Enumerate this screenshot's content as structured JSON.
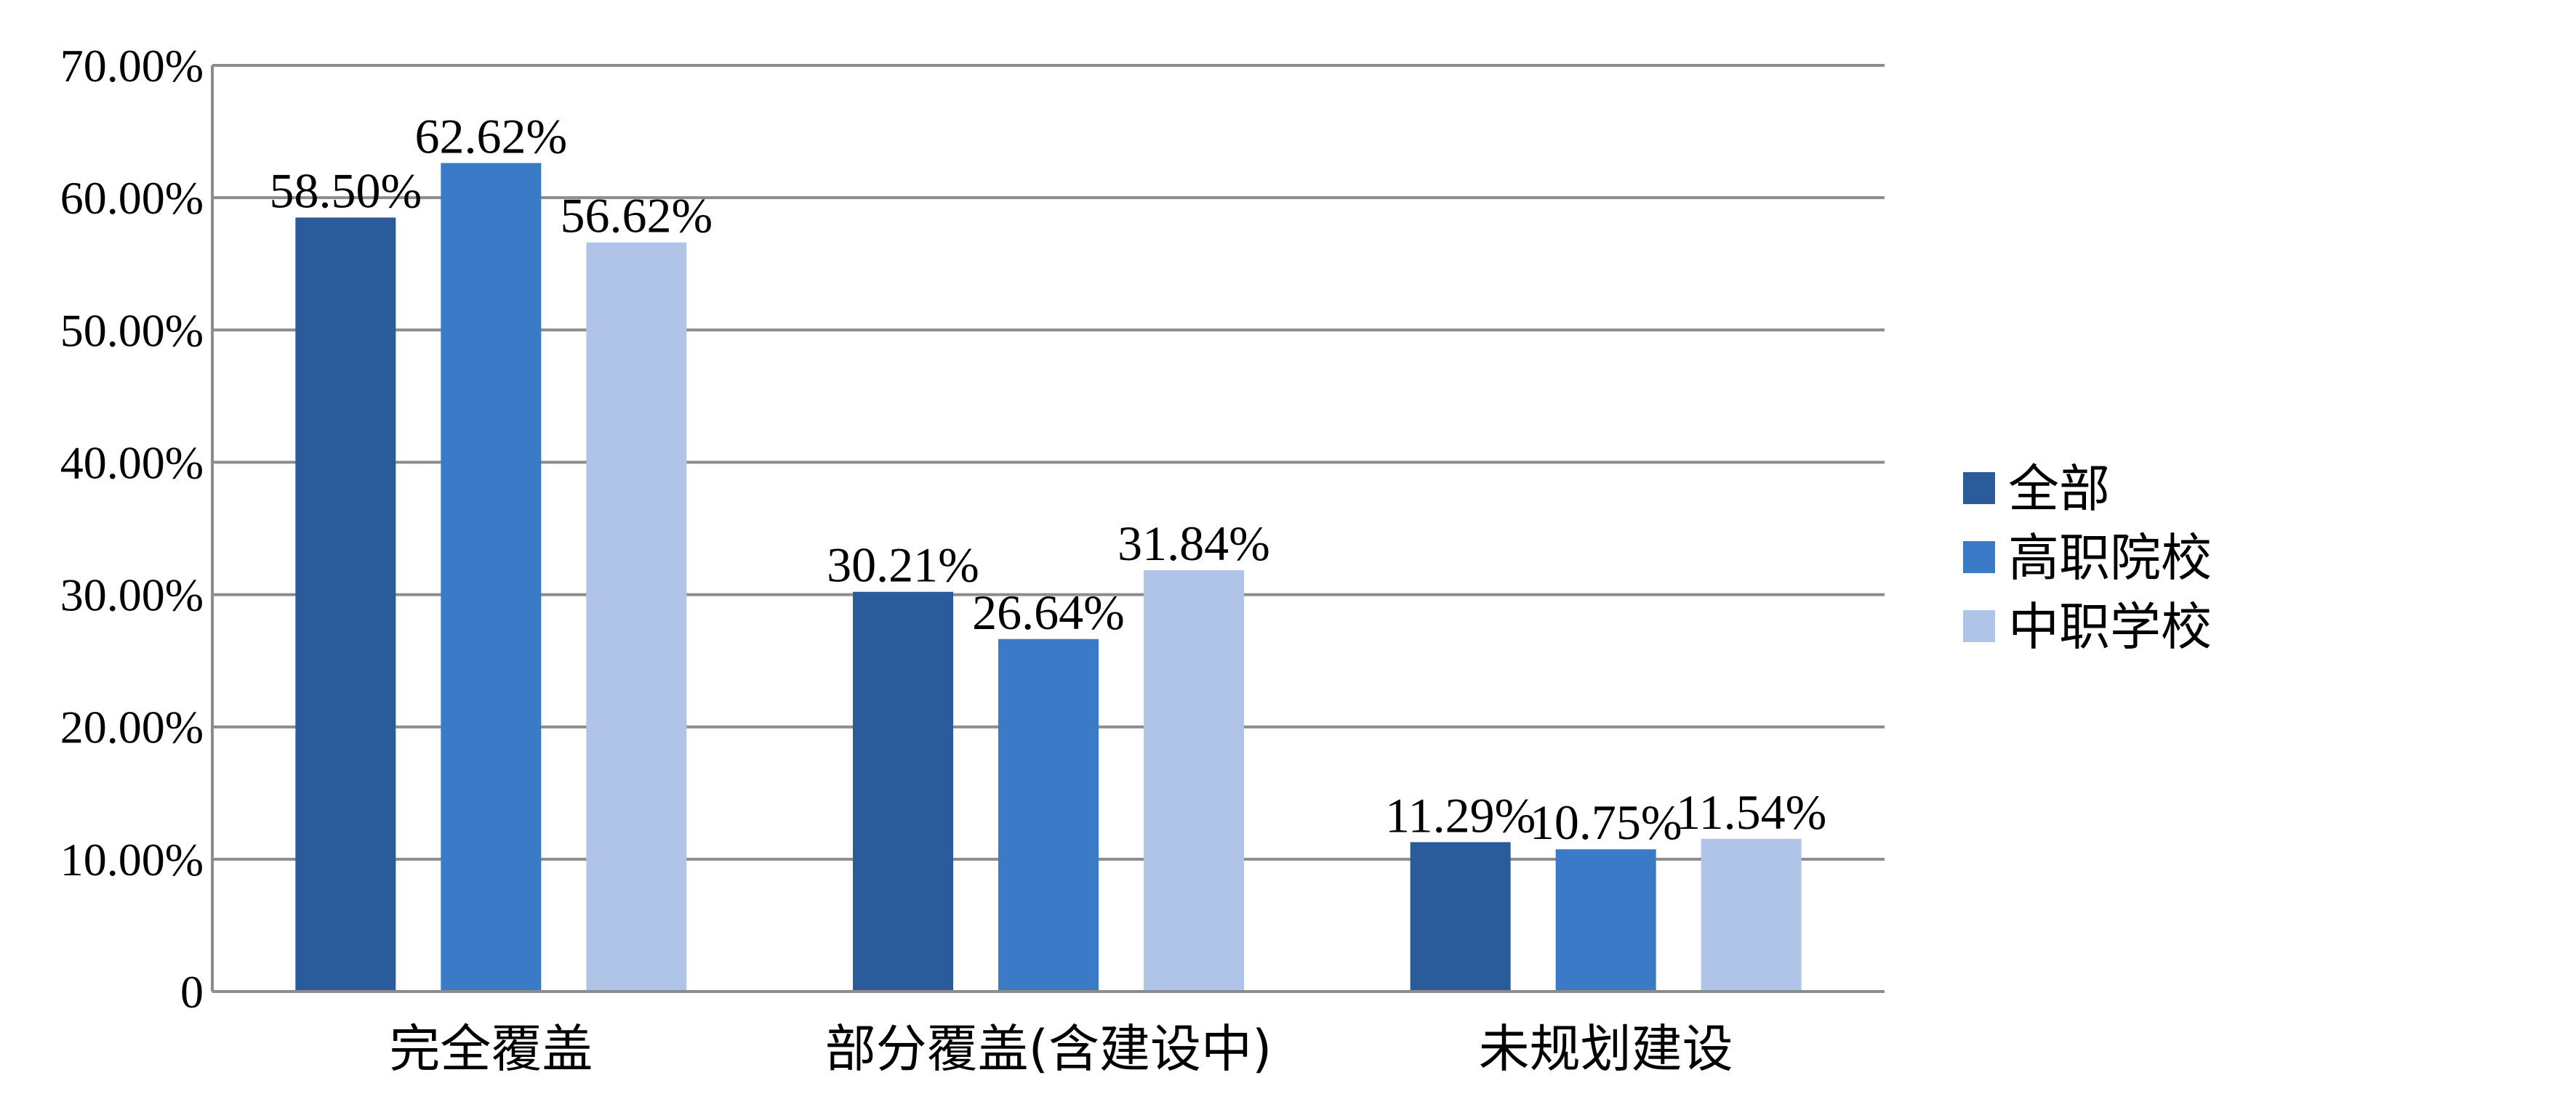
{
  "chart_data": {
    "type": "bar",
    "categories": [
      "完全覆盖",
      "部分覆盖(含建设中)",
      "未规划建设"
    ],
    "series": [
      {
        "name": "全部",
        "color": "#2a5b9b",
        "values": [
          58.5,
          30.21,
          11.29
        ],
        "labels": [
          "58.50%",
          "30.21%",
          "11.29%"
        ]
      },
      {
        "name": "高职院校",
        "color": "#3a7ac6",
        "values": [
          62.62,
          26.64,
          10.75
        ],
        "labels": [
          "62.62%",
          "26.64%",
          "10.75%"
        ]
      },
      {
        "name": "中职学校",
        "color": "#b0c4e8",
        "values": [
          56.62,
          31.84,
          11.54
        ],
        "labels": [
          "56.62%",
          "31.84%",
          "11.54%"
        ]
      }
    ],
    "ylim": [
      0,
      70
    ],
    "yticks": [
      0,
      10,
      20,
      30,
      40,
      50,
      60,
      70
    ],
    "ytick_labels": [
      "0",
      "10.00%",
      "20.00%",
      "30.00%",
      "40.00%",
      "50.00%",
      "60.00%",
      "70.00%"
    ],
    "grid": true,
    "legend": "right",
    "title": "",
    "xlabel": "",
    "ylabel": ""
  }
}
